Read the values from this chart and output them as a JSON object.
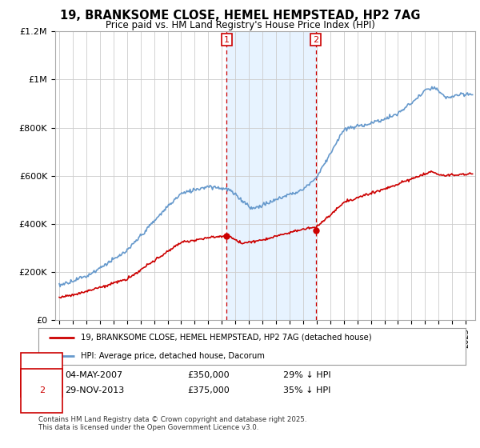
{
  "title": "19, BRANKSOME CLOSE, HEMEL HEMPSTEAD, HP2 7AG",
  "subtitle": "Price paid vs. HM Land Registry's House Price Index (HPI)",
  "ylim": [
    0,
    1200000
  ],
  "yticks": [
    0,
    200000,
    400000,
    600000,
    800000,
    1000000,
    1200000
  ],
  "ytick_labels": [
    "£0",
    "£200K",
    "£400K",
    "£600K",
    "£800K",
    "£1M",
    "£1.2M"
  ],
  "xlim_left": 1994.7,
  "xlim_right": 2025.7,
  "sale1_date_num": 2007.35,
  "sale1_price": 350000,
  "sale2_date_num": 2013.92,
  "sale2_price": 375000,
  "shade_color": "#ddeeff",
  "shade_alpha": 0.7,
  "hpi_color": "#6699cc",
  "price_color": "#cc0000",
  "legend1_text": "19, BRANKSOME CLOSE, HEMEL HEMPSTEAD, HP2 7AG (detached house)",
  "legend2_text": "HPI: Average price, detached house, Dacorum",
  "table_row1": [
    "1",
    "04-MAY-2007",
    "£350,000",
    "29% ↓ HPI"
  ],
  "table_row2": [
    "2",
    "29-NOV-2013",
    "£375,000",
    "35% ↓ HPI"
  ],
  "footnote": "Contains HM Land Registry data © Crown copyright and database right 2025.\nThis data is licensed under the Open Government Licence v3.0.",
  "background_color": "#ffffff",
  "grid_color": "#cccccc"
}
